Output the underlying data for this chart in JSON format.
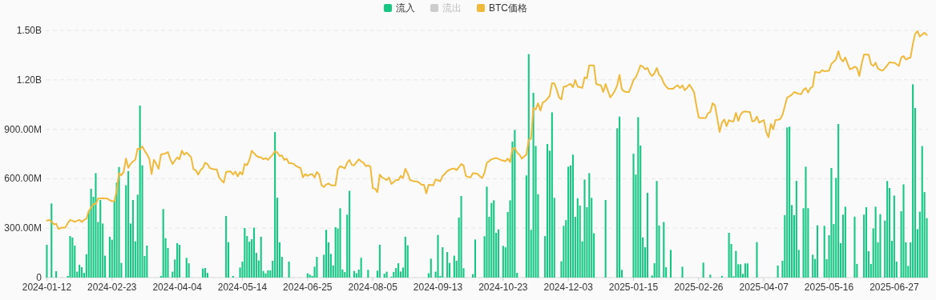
{
  "chart_data": {
    "type": "bar",
    "grid": "y",
    "legend": "top",
    "ylim": [
      0,
      1500000000.0
    ],
    "yticks": [
      0,
      {
        "value": 300000000.0,
        "label": "300.00M"
      },
      {
        "value": 600000000.0,
        "label": "600.00M"
      },
      {
        "value": 900000000.0,
        "label": "900.00M"
      },
      {
        "value": 1200000000.0,
        "label": "1.20B"
      },
      {
        "value": 1500000000.0,
        "label": "1.50B"
      }
    ],
    "categories": [
      "2024-01-12",
      null,
      null,
      null,
      null,
      null,
      null,
      null,
      null,
      null,
      null,
      null,
      null,
      null,
      null,
      null,
      null,
      null,
      null,
      null,
      null,
      null,
      null,
      null,
      null,
      null,
      null,
      null,
      "2024-02-23",
      null,
      null,
      null,
      null,
      null,
      null,
      null,
      null,
      null,
      null,
      null,
      null,
      null,
      null,
      null,
      null,
      null,
      null,
      null,
      null,
      null,
      null,
      null,
      null,
      null,
      null,
      null,
      "2024-04-04",
      null,
      null,
      null,
      null,
      null,
      null,
      null,
      null,
      null,
      null,
      null,
      null,
      null,
      null,
      null,
      null,
      null,
      null,
      null,
      null,
      null,
      null,
      null,
      null,
      null,
      null,
      null,
      "2024-05-14",
      null,
      null,
      null,
      null,
      null,
      null,
      null,
      null,
      null,
      null,
      null,
      null,
      null,
      null,
      null,
      null,
      null,
      null,
      null,
      null,
      null,
      null,
      null,
      null,
      null,
      null,
      null,
      "2024-06-25",
      null,
      null,
      null,
      null,
      null,
      null,
      null,
      null,
      null,
      null,
      null,
      null,
      null,
      null,
      null,
      null,
      null,
      null,
      null,
      null,
      null,
      null,
      null,
      null,
      null,
      null,
      null,
      "2024-08-05",
      null,
      null,
      null,
      null,
      null,
      null,
      null,
      null,
      null,
      null,
      null,
      null,
      null,
      null,
      null,
      null,
      null,
      null,
      null,
      null,
      null,
      null,
      null,
      null,
      null,
      null,
      null,
      "2024-09-13",
      null,
      null,
      null,
      null,
      null,
      null,
      null,
      null,
      null,
      null,
      null,
      null,
      null,
      null,
      null,
      null,
      null,
      null,
      null,
      null,
      null,
      null,
      null,
      null,
      null,
      null,
      null,
      "2024-10-23",
      null,
      null,
      null,
      null,
      null,
      null,
      null,
      null,
      null,
      null,
      null,
      null,
      null,
      null,
      null,
      null,
      null,
      null,
      null,
      null,
      null,
      null,
      null,
      null,
      null,
      null,
      null,
      "2024-12-03",
      null,
      null,
      null,
      null,
      null,
      null,
      null,
      null,
      null,
      null,
      null,
      null,
      null,
      null,
      null,
      null,
      null,
      null,
      null,
      null,
      null,
      null,
      null,
      null,
      null,
      null,
      null,
      "2025-01-15",
      null,
      null,
      null,
      null,
      null,
      null,
      null,
      null,
      null,
      null,
      null,
      null,
      null,
      null,
      null,
      null,
      null,
      null,
      null,
      null,
      null,
      null,
      null,
      null,
      null,
      null,
      null,
      "2025-02-26",
      null,
      null,
      null,
      null,
      null,
      null,
      null,
      null,
      null,
      null,
      null,
      null,
      null,
      null,
      null,
      null,
      null,
      null,
      null,
      null,
      null,
      null,
      null,
      null,
      null,
      null,
      null,
      "2025-04-07",
      null,
      null,
      null,
      null,
      null,
      null,
      null,
      null,
      null,
      null,
      null,
      null,
      null,
      null,
      null,
      null,
      null,
      null,
      null,
      null,
      null,
      null,
      null,
      null,
      null,
      null,
      null,
      "2025-05-16",
      null,
      null,
      null,
      null,
      null,
      null,
      null,
      null,
      null,
      null,
      null,
      null,
      null,
      null,
      null,
      null,
      null,
      null,
      null,
      null,
      null,
      null,
      null,
      null,
      null,
      null,
      null,
      "2025-06-27",
      null,
      null,
      null,
      null,
      null,
      null,
      null,
      null,
      null,
      null,
      null,
      null,
      null,
      null
    ],
    "series": [
      {
        "name": "流入",
        "color": "#16c784",
        "values": [
          199000000.0,
          null,
          450000000.0,
          null,
          39000000.0,
          null,
          null,
          null,
          null,
          10000000.0,
          252000000.0,
          243000000.0,
          194000000.0,
          36000000.0,
          78000000.0,
          63000000.0,
          29000000.0,
          142000000.0,
          403000000.0,
          539000000.0,
          490000000.0,
          634000000.0,
          337000000.0,
          471000000.0,
          328000000.0,
          133000000.0,
          null,
          248000000.0,
          230000000.0,
          468000000.0,
          576000000.0,
          671000000.0,
          89000000.0,
          null,
          560000000.0,
          646000000.0,
          328000000.0,
          471000000.0,
          220000000.0,
          503000000.0,
          1044000000.0,
          681000000.0,
          131000000.0,
          194000000.0,
          null,
          null,
          null,
          null,
          null,
          10000000.0,
          416000000.0,
          239000000.0,
          180000000.0,
          null,
          36000000.0,
          110000000.0,
          209000000.0,
          199000000.0,
          null,
          null,
          120000000.0,
          87000000.0,
          null,
          null,
          null,
          null,
          null,
          55000000.0,
          58000000.0,
          29000000.0,
          null,
          null,
          null,
          null,
          null,
          null,
          null,
          374000000.0,
          215000000.0,
          null,
          10000000.0,
          null,
          null,
          61000000.0,
          97000000.0,
          301000000.0,
          252000000.0,
          218000000.0,
          233000000.0,
          303000000.0,
          150000000.0,
          104000000.0,
          248000000.0,
          40000000.0,
          26000000.0,
          44000000.0,
          44000000.0,
          102000000.0,
          883000000.0,
          485000000.0,
          214000000.0,
          126000000.0,
          null,
          null,
          97000000.0,
          null,
          null,
          null,
          null,
          null,
          null,
          null,
          26000000.0,
          18000000.0,
          10000000.0,
          66000000.0,
          126000000.0,
          null,
          null,
          139000000.0,
          290000000.0,
          214000000.0,
          144000000.0,
          74000000.0,
          306000000.0,
          298000000.0,
          421000000.0,
          49000000.0,
          34000000.0,
          382000000.0,
          527000000.0,
          null,
          40000000.0,
          26000000.0,
          49000000.0,
          120000000.0,
          null,
          null,
          47000000.0,
          null,
          null,
          null,
          42000000.0,
          199000000.0,
          null,
          24000000.0,
          36000000.0,
          null,
          6000000.0,
          34000000.0,
          58000000.0,
          87000000.0,
          37000000.0,
          61000000.0,
          248000000.0,
          196000000.0,
          null,
          null,
          null,
          null,
          null,
          null,
          null,
          null,
          26000000.0,
          115000000.0,
          null,
          36000000.0,
          259000000.0,
          10000000.0,
          184000000.0,
          null,
          155000000.0,
          89000000.0,
          null,
          133000000.0,
          102000000.0,
          364000000.0,
          495000000.0,
          57000000.0,
          null,
          null,
          null,
          21000000.0,
          231000000.0,
          null,
          null,
          null,
          251000000.0,
          552000000.0,
          369000000.0,
          453000000.0,
          469000000.0,
          272000000.0,
          293000000.0,
          null,
          193000000.0,
          184000000.0,
          398000000.0,
          469000000.0,
          825000000.0,
          896000000.0,
          29000000.0,
          null,
          null,
          null,
          620000000.0,
          1356000000.0,
          290000000.0,
          1121000000.0,
          799000000.0,
          506000000.0,
          null,
          null,
          252000000.0,
          811000000.0,
          770000000.0,
          1003000000.0,
          484000000.0,
          null,
          null,
          99000000.0,
          314000000.0,
          349000000.0,
          673000000.0,
          681000000.0,
          746000000.0,
          369000000.0,
          481000000.0,
          437000000.0,
          220000000.0,
          595000000.0,
          427000000.0,
          634000000.0,
          484000000.0,
          269000000.0,
          null,
          null,
          null,
          null,
          471000000.0,
          null,
          null,
          null,
          null,
          906000000.0,
          977000000.0,
          47000000.0,
          null,
          null,
          null,
          null,
          752000000.0,
          625000000.0,
          974000000.0,
          801000000.0,
          244000000.0,
          184000000.0,
          515000000.0,
          null,
          13000000.0,
          87000000.0,
          586000000.0,
          316000000.0,
          null,
          337000000.0,
          63000000.0,
          null,
          168000000.0,
          null,
          null,
          null,
          null,
          66000000.0,
          null,
          null,
          null,
          null,
          null,
          null,
          null,
          null,
          91000000.0,
          null,
          null,
          18000000.0,
          null,
          null,
          null,
          null,
          10000000.0,
          null,
          null,
          272000000.0,
          204000000.0,
          8000000.0,
          162000000.0,
          81000000.0,
          81000000.0,
          23000000.0,
          86000000.0,
          86000000.0,
          null,
          null,
          null,
          215000000.0,
          null,
          null,
          null,
          null,
          null,
          null,
          null,
          null,
          73000000.0,
          null,
          102000000.0,
          379000000.0,
          911000000.0,
          916000000.0,
          440000000.0,
          379000000.0,
          587000000.0,
          168000000.0,
          null,
          421000000.0,
          673000000.0,
          421000000.0,
          null,
          139000000.0,
          113000000.0,
          317000000.0,
          null,
          null,
          314000000.0,
          112000000.0,
          257000000.0,
          665000000.0,
          325000000.0,
          605000000.0,
          932000000.0,
          209000000.0,
          382000000.0,
          430000000.0,
          null,
          null,
          null,
          370000000.0,
          83000000.0,
          null,
          null,
          382000000.0,
          427000000.0,
          160000000.0,
          83000000.0,
          299000000.0,
          430000000.0,
          214000000.0,
          385000000.0,
          null,
          346000000.0,
          586000000.0,
          544000000.0,
          223000000.0,
          498000000.0,
          97000000.0,
          null,
          403000000.0,
          566000000.0,
          214000000.0,
          71000000.0,
          214000000.0,
          1173000000.0,
          1029000000.0,
          294000000.0,
          400000000.0,
          798000000.0,
          519000000.0,
          361000000.0
        ]
      },
      {
        "name": "流出",
        "color": "#cccccc",
        "values": [
          null,
          null,
          null,
          null,
          null,
          null,
          null,
          null,
          null,
          null,
          null,
          null,
          null,
          null,
          null,
          null,
          null,
          null,
          null,
          null,
          null,
          null,
          null,
          null,
          null,
          null,
          null,
          null,
          null,
          null,
          null,
          null,
          null,
          null,
          null,
          null,
          null,
          null,
          null,
          null,
          null,
          null,
          null,
          null,
          null,
          null,
          null,
          null,
          null,
          null,
          null,
          null,
          null,
          null,
          null,
          null,
          null,
          null,
          null,
          null,
          null,
          null,
          null,
          null,
          null,
          null,
          null,
          null,
          null,
          null,
          null,
          null,
          null,
          null,
          null,
          null,
          null,
          null,
          null,
          null,
          null,
          null,
          null,
          null,
          null,
          null,
          null,
          null,
          null,
          null,
          null,
          null,
          null,
          null,
          null,
          null,
          null,
          null,
          null,
          null,
          null,
          null,
          null,
          null,
          null,
          null,
          null,
          null,
          null,
          null,
          null,
          null,
          null,
          null,
          null,
          null,
          null,
          null,
          null,
          null,
          null,
          null,
          null,
          null,
          null,
          null,
          null,
          null,
          null,
          null,
          null,
          null,
          null,
          null,
          null,
          null,
          null,
          null,
          null,
          null,
          null,
          null,
          null,
          null,
          null,
          null,
          null,
          null,
          null,
          null,
          null,
          null,
          null,
          null,
          null,
          null,
          null,
          null,
          null,
          null,
          null,
          null,
          null,
          null,
          null,
          null,
          null,
          null,
          null,
          null,
          null,
          null,
          null,
          null,
          null,
          null,
          null,
          null,
          null,
          null,
          null,
          null,
          null,
          null,
          null,
          null,
          null,
          null,
          null,
          null,
          null,
          null,
          null,
          null,
          null,
          null,
          null,
          null,
          null,
          null,
          null,
          null,
          null,
          null,
          null,
          null,
          null,
          null,
          null,
          null,
          null,
          null,
          null,
          null,
          null,
          null,
          null,
          null,
          null,
          null,
          null,
          null,
          null,
          null,
          null,
          null,
          null,
          null,
          null,
          null,
          null,
          null,
          null,
          null,
          null,
          null,
          null,
          null,
          null,
          null,
          null,
          null,
          null,
          null,
          null,
          null,
          null,
          null,
          null,
          null,
          null,
          null,
          null,
          null,
          null,
          null,
          null,
          null,
          null,
          null,
          null,
          null,
          null,
          null,
          null,
          null,
          null,
          null,
          null,
          null,
          null,
          null,
          null,
          null,
          null,
          null,
          null,
          null,
          null,
          null,
          null,
          null,
          null,
          null,
          null,
          null,
          null,
          null,
          null,
          null,
          null,
          null,
          null,
          null,
          null,
          null,
          null,
          null,
          null,
          null,
          null,
          null,
          null,
          null,
          null,
          null,
          null,
          null,
          null,
          null,
          null,
          null,
          null,
          null,
          null,
          null,
          null,
          null,
          null,
          null,
          null,
          null,
          null,
          null,
          null,
          null,
          null,
          null,
          null,
          null,
          null,
          null,
          null,
          null,
          null,
          null,
          null,
          null,
          null,
          null,
          null,
          null,
          null,
          null,
          null,
          null,
          null,
          null,
          null,
          null,
          null,
          null,
          null,
          null,
          null,
          null,
          null,
          null,
          null,
          null,
          null,
          null,
          null,
          null,
          null,
          null,
          null,
          null,
          null,
          null,
          null,
          null,
          null,
          null,
          null,
          null,
          null,
          null,
          null
        ]
      },
      {
        "name": "BTC価格",
        "type": "line",
        "color": "#f0b93a",
        "values": [
          346000000.0,
          350000000.0,
          340000000.0,
          323000000.0,
          327000000.0,
          294000000.0,
          302000000.0,
          303000000.0,
          304000000.0,
          330000000.0,
          350000000.0,
          345000000.0,
          338000000.0,
          345000000.0,
          350000000.0,
          338000000.0,
          350000000.0,
          357000000.0,
          404000000.0,
          425000000.0,
          446000000.0,
          446000000.0,
          479000000.0,
          480000000.0,
          482000000.0,
          480000000.0,
          479000000.0,
          470000000.0,
          463000000.0,
          463000000.0,
          527000000.0,
          633000000.0,
          621000000.0,
          641000000.0,
          722000000.0,
          666000000.0,
          690000000.0,
          705000000.0,
          715000000.0,
          783000000.0,
          778000000.0,
          796000000.0,
          770000000.0,
          748000000.0,
          722000000.0,
          628000000.0,
          715000000.0,
          690000000.0,
          660000000.0,
          746000000.0,
          750000000.0,
          754000000.0,
          762000000.0,
          720000000.0,
          689000000.0,
          710000000.0,
          729000000.0,
          718000000.0,
          770000000.0,
          746000000.0,
          759000000.0,
          745000000.0,
          730000000.0,
          657000000.0,
          652000000.0,
          625000000.0,
          652000000.0,
          665000000.0,
          697000000.0,
          689000000.0,
          665000000.0,
          660000000.0,
          657000000.0,
          657000000.0,
          608000000.0,
          590000000.0,
          576000000.0,
          641000000.0,
          643000000.0,
          644000000.0,
          625000000.0,
          644000000.0,
          614000000.0,
          641000000.0,
          625000000.0,
          690000000.0,
          682000000.0,
          714000000.0,
          770000000.0,
          754000000.0,
          740000000.0,
          730000000.0,
          730000000.0,
          718000000.0,
          725000000.0,
          714000000.0,
          730000000.0,
          746000000.0,
          766000000.0,
          759000000.0,
          738000000.0,
          741000000.0,
          714000000.0,
          722000000.0,
          694000000.0,
          694000000.0,
          690000000.0,
          678000000.0,
          670000000.0,
          665000000.0,
          608000000.0,
          628000000.0,
          617000000.0,
          625000000.0,
          628000000.0,
          608000000.0,
          641000000.0,
          625000000.0,
          561000000.0,
          550000000.0,
          565000000.0,
          571000000.0,
          561000000.0,
          560000000.0,
          560000000.0,
          657000000.0,
          676000000.0,
          670000000.0,
          662000000.0,
          697000000.0,
          714000000.0,
          684000000.0,
          681000000.0,
          700000000.0,
          718000000.0,
          705000000.0,
          697000000.0,
          676000000.0,
          681000000.0,
          673000000.0,
          543000000.0,
          539000000.0,
          519000000.0,
          625000000.0,
          608000000.0,
          600000000.0,
          592000000.0,
          608000000.0,
          568000000.0,
          580000000.0,
          592000000.0,
          592000000.0,
          617000000.0,
          604000000.0,
          660000000.0,
          633000000.0,
          592000000.0,
          588000000.0,
          584000000.0,
          584000000.0,
          575000000.0,
          563000000.0,
          563000000.0,
          511000000.0,
          563000000.0,
          562000000.0,
          560000000.0,
          595000000.0,
          590000000.0,
          584000000.0,
          617000000.0,
          630000000.0,
          646000000.0,
          655000000.0,
          660000000.0,
          662000000.0,
          652000000.0,
          670000000.0,
          689000000.0,
          681000000.0,
          617000000.0,
          610000000.0,
          608000000.0,
          633000000.0,
          632000000.0,
          630000000.0,
          615000000.0,
          604000000.0,
          637000000.0,
          697000000.0,
          706000000.0,
          718000000.0,
          722000000.0,
          726000000.0,
          720000000.0,
          714000000.0,
          710000000.0,
          706000000.0,
          722000000.0,
          701000000.0,
          783000000.0,
          786000000.0,
          759000000.0,
          746000000.0,
          722000000.0,
          735000000.0,
          746000000.0,
          835000000.0,
          843000000.0,
          1029000000.0,
          1021000000.0,
          1058000000.0,
          1013000000.0,
          1062000000.0,
          1070000000.0,
          1085000000.0,
          1102000000.0,
          1180000000.0,
          1179000000.0,
          1140000000.0,
          1094000000.0,
          1081000000.0,
          1159000000.0,
          1159000000.0,
          1170000000.0,
          1175000000.0,
          1155000000.0,
          1199000000.0,
          1159000000.0,
          1155000000.0,
          1151000000.0,
          1215000000.0,
          1210000000.0,
          1288000000.0,
          1288000000.0,
          1288000000.0,
          1175000000.0,
          1170000000.0,
          1167000000.0,
          1126000000.0,
          1175000000.0,
          1134000000.0,
          1094000000.0,
          1110000000.0,
          1134000000.0,
          1167000000.0,
          1231000000.0,
          1142000000.0,
          1130000000.0,
          1126000000.0,
          1126000000.0,
          1160000000.0,
          1199000000.0,
          1215000000.0,
          1250000000.0,
          1288000000.0,
          1280000000.0,
          1264000000.0,
          1272000000.0,
          1240000000.0,
          1223000000.0,
          1239000000.0,
          1272000000.0,
          1231000000.0,
          1215000000.0,
          1180000000.0,
          1159000000.0,
          1146000000.0,
          1146000000.0,
          1146000000.0,
          1159000000.0,
          1167000000.0,
          1150000000.0,
          1167000000.0,
          1137000000.0,
          1150000000.0,
          1171000000.0,
          1150000000.0,
          1126000000.0,
          1045000000.0,
          972000000.0,
          968000000.0,
          968000000.0,
          968000000.0,
          997000000.0,
          1005000000.0,
          1058000000.0,
          1045000000.0,
          964000000.0,
          884000000.0,
          940000000.0,
          960000000.0,
          919000000.0,
          956000000.0,
          948000000.0,
          948000000.0,
          1000000000.0,
          951000000.0,
          990000000.0,
          1005000000.0,
          1008000000.0,
          1006000000.0,
          1005000000.0,
          948000000.0,
          951000000.0,
          977000000.0,
          940000000.0,
          948000000.0,
          956000000.0,
          884000000.0,
          852000000.0,
          932000000.0,
          900000000.0,
          956000000.0,
          958000000.0,
          961000000.0,
          988000000.0,
          1040000000.0,
          1093000000.0,
          1100000000.0,
          1110000000.0,
          1126000000.0,
          1120000000.0,
          1115000000.0,
          1113000000.0,
          1139000000.0,
          1150000000.0,
          1123000000.0,
          1150000000.0,
          1159000000.0,
          1248000000.0,
          1245000000.0,
          1243000000.0,
          1259000000.0,
          1252000000.0,
          1254000000.0,
          1256000000.0,
          1296000000.0,
          1310000000.0,
          1324000000.0,
          1374000000.0,
          1328000000.0,
          1312000000.0,
          1336000000.0,
          1296000000.0,
          1264000000.0,
          1270000000.0,
          1280000000.0,
          1272000000.0,
          1223000000.0,
          1296000000.0,
          1353000000.0,
          1353000000.0,
          1353000000.0,
          1296000000.0,
          1284000000.0,
          1304000000.0,
          1269000000.0,
          1260000000.0,
          1256000000.0,
          1270000000.0,
          1288000000.0,
          1307000000.0,
          1305000000.0,
          1304000000.0,
          1295000000.0,
          1284000000.0,
          1336000000.0,
          1344000000.0,
          1323000000.0,
          1330000000.0,
          1336000000.0,
          1417000000.0,
          1480000000.0,
          1495000000.0,
          1463000000.0,
          1475000000.0,
          1486000000.0,
          1472000000.0
        ]
      }
    ]
  }
}
